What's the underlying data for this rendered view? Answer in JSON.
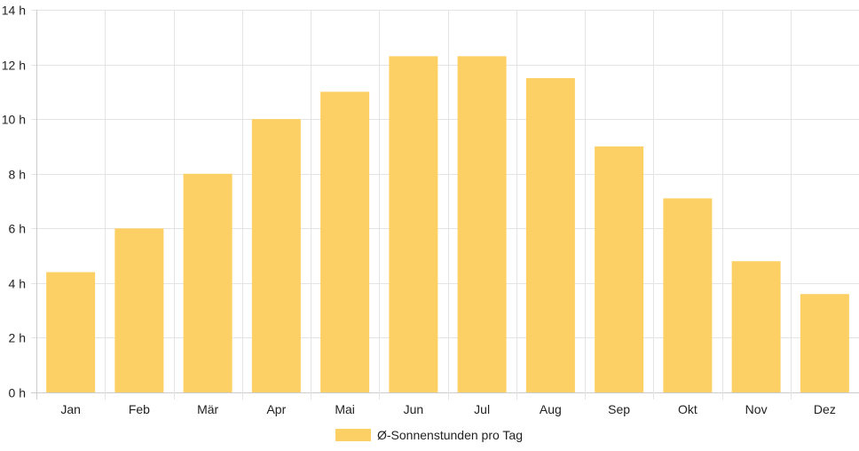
{
  "chart_data": {
    "type": "bar",
    "categories": [
      "Jan",
      "Feb",
      "Mär",
      "Apr",
      "Mai",
      "Jun",
      "Jul",
      "Aug",
      "Sep",
      "Okt",
      "Nov",
      "Dez"
    ],
    "series": [
      {
        "name": "Ø-Sonnenstunden pro Tag",
        "values": [
          4.4,
          6.0,
          8.0,
          10.0,
          11.0,
          12.3,
          12.3,
          11.5,
          9.0,
          7.1,
          4.8,
          3.6
        ]
      }
    ],
    "y_ticks": [
      "0 h",
      "2 h",
      "4 h",
      "6 h",
      "8 h",
      "10 h",
      "12 h",
      "14 h"
    ],
    "ylim": [
      0,
      14
    ],
    "y_unit": "h",
    "grid": true,
    "legend_position": "bottom",
    "bar_color": "#fdd065",
    "grid_color": "#e4e4e4",
    "axis_color": "#cccccc"
  }
}
